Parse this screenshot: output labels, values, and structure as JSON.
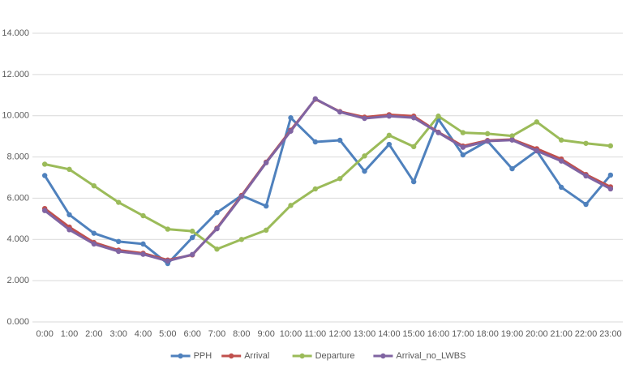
{
  "chart_data": {
    "type": "line",
    "categories": [
      "0:00",
      "1:00",
      "2:00",
      "3:00",
      "4:00",
      "5:00",
      "6:00",
      "7:00",
      "8:00",
      "9:00",
      "10:00",
      "11:00",
      "12:00",
      "13:00",
      "14:00",
      "15:00",
      "16:00",
      "17:00",
      "18:00",
      "19:00",
      "20:00",
      "21:00",
      "22:00",
      "23:00"
    ],
    "series": [
      {
        "name": "PPH",
        "color": "#4f81bd",
        "values": [
          7100,
          5200,
          4300,
          3900,
          3780,
          2830,
          4090,
          5300,
          6130,
          5620,
          9900,
          8730,
          8810,
          7310,
          8610,
          6800,
          9830,
          8100,
          8770,
          7430,
          8300,
          6530,
          5700,
          7120
        ]
      },
      {
        "name": "Arrival",
        "color": "#c0504d",
        "values": [
          5500,
          4600,
          3850,
          3480,
          3330,
          3000,
          3250,
          4550,
          6130,
          7750,
          9300,
          10800,
          10200,
          9930,
          10050,
          9980,
          9200,
          8530,
          8800,
          8850,
          8400,
          7900,
          7150,
          6550
        ]
      },
      {
        "name": "Departure",
        "color": "#9bbb59",
        "values": [
          7650,
          7400,
          6600,
          5800,
          5150,
          4500,
          4400,
          3530,
          4000,
          4450,
          5650,
          6450,
          6950,
          8050,
          9050,
          8500,
          9980,
          9180,
          9130,
          9020,
          9700,
          8820,
          8660,
          8540
        ]
      },
      {
        "name": "Arrival_no_LWBS",
        "color": "#8064a2",
        "values": [
          5400,
          4470,
          3780,
          3420,
          3280,
          2950,
          3270,
          4520,
          6080,
          7720,
          9250,
          10820,
          10180,
          9870,
          9980,
          9900,
          9180,
          8470,
          8770,
          8820,
          8300,
          7800,
          7080,
          6450
        ]
      }
    ],
    "ylim": [
      0,
      14000
    ],
    "yticks": [
      {
        "value": 0,
        "label": "0.000"
      },
      {
        "value": 2000,
        "label": "2.000"
      },
      {
        "value": 4000,
        "label": "4.000"
      },
      {
        "value": 6000,
        "label": "6.000"
      },
      {
        "value": 8000,
        "label": "8.000"
      },
      {
        "value": 10000,
        "label": "10.000"
      },
      {
        "value": 12000,
        "label": "12.000"
      },
      {
        "value": 14000,
        "label": "14.000"
      }
    ],
    "grid": true,
    "legend": "bottom"
  }
}
